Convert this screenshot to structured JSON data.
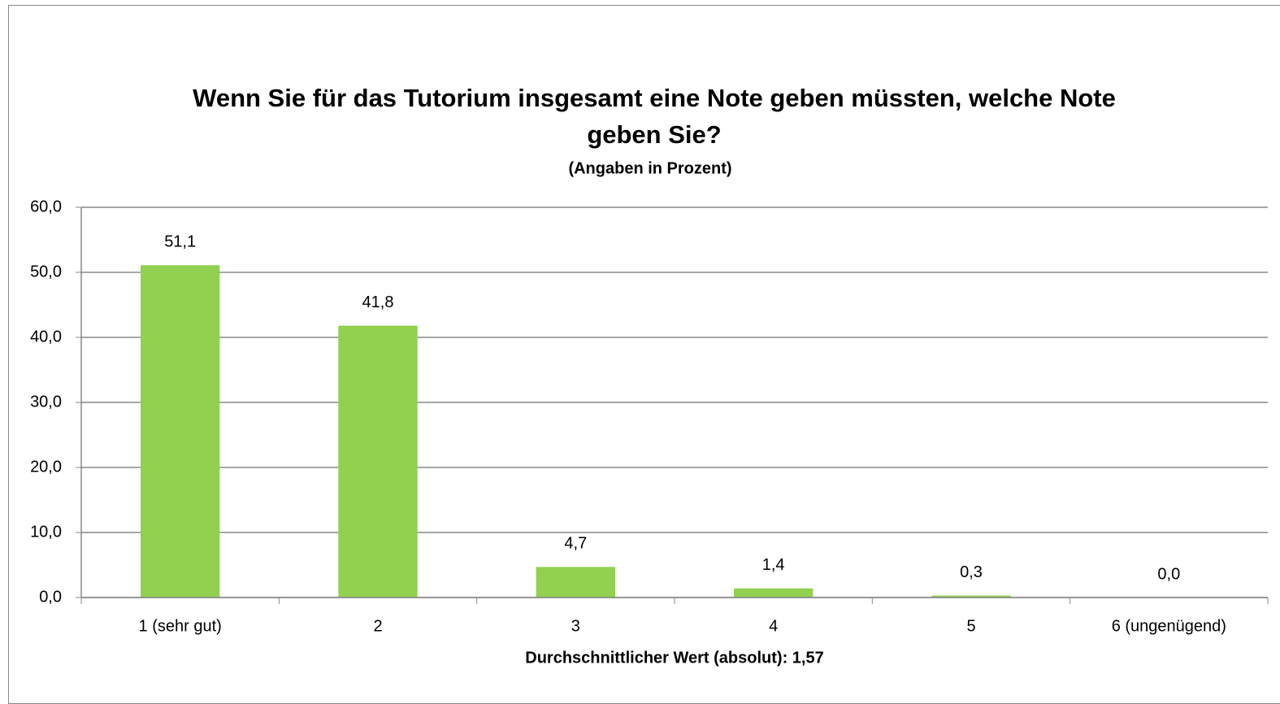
{
  "chart_data": {
    "type": "bar",
    "title": "Wenn Sie für das Tutorium insgesamt eine Note geben müssten, welche Note geben Sie?",
    "subtitle": "(Angaben in Prozent)",
    "x_label": "Durchschnittlicher Wert (absolut): 1,57",
    "categories": [
      "1 (sehr gut)",
      "2",
      "3",
      "4",
      "5",
      "6 (ungenügend)"
    ],
    "values": [
      51.1,
      41.8,
      4.7,
      1.4,
      0.3,
      0.0
    ],
    "value_labels": [
      "51,1",
      "41,8",
      "4,7",
      "1,4",
      "0,3",
      "0,0"
    ],
    "color": "#92d050",
    "ylim": [
      0,
      60
    ],
    "yticks": [
      {
        "value": 0,
        "label": "0,0"
      },
      {
        "value": 10,
        "label": "10,0"
      },
      {
        "value": 20,
        "label": "20,0"
      },
      {
        "value": 30,
        "label": "30,0"
      },
      {
        "value": 40,
        "label": "40,0"
      },
      {
        "value": 50,
        "label": "50,0"
      },
      {
        "value": 60,
        "label": "60,0"
      }
    ],
    "grid": true
  }
}
